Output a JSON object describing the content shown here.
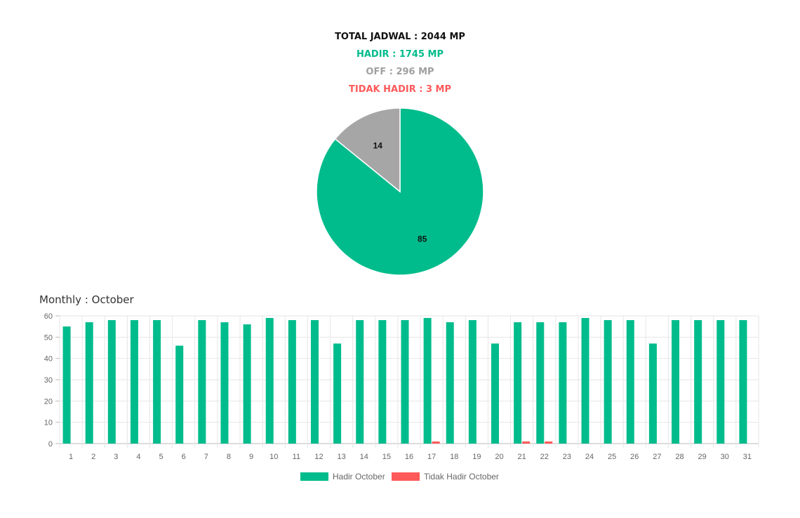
{
  "summary": {
    "total": {
      "text": "TOTAL JADWAL : 2044 MP",
      "color": "#111111"
    },
    "hadir": {
      "text": "HADIR : 1745 MP",
      "color": "#00bc8c"
    },
    "off": {
      "text": "OFF : 296 MP",
      "color": "#a0a0a0"
    },
    "tidak": {
      "text": "TIDAK HADIR : 3 MP",
      "color": "#ff5a5a"
    }
  },
  "monthly_title": "Monthly : October",
  "colors": {
    "hadir": "#00bc8c",
    "off": "#a6a6a6",
    "tidak": "#ff5a5a",
    "grid": "#e6e6e6",
    "tick": "#666666"
  },
  "chart_data": [
    {
      "type": "pie",
      "slices": [
        {
          "label": "HADIR",
          "value": 85,
          "color": "#00bc8c"
        },
        {
          "label": "OFF",
          "value": 14,
          "color": "#a6a6a6"
        }
      ]
    },
    {
      "type": "bar",
      "categories": [
        "1",
        "2",
        "3",
        "4",
        "5",
        "6",
        "7",
        "8",
        "9",
        "10",
        "11",
        "12",
        "13",
        "14",
        "15",
        "16",
        "17",
        "18",
        "19",
        "20",
        "21",
        "22",
        "23",
        "24",
        "25",
        "26",
        "27",
        "28",
        "29",
        "30",
        "31"
      ],
      "series": [
        {
          "name": "Hadir October",
          "color": "#00bc8c",
          "values": [
            55,
            57,
            58,
            58,
            58,
            46,
            58,
            57,
            56,
            59,
            58,
            58,
            47,
            58,
            58,
            58,
            59,
            57,
            58,
            47,
            57,
            57,
            57,
            59,
            58,
            58,
            47,
            58,
            58,
            58,
            58
          ]
        },
        {
          "name": "Tidak Hadir October",
          "color": "#ff5a5a",
          "values": [
            0,
            0,
            0,
            0,
            0,
            0,
            0,
            0,
            0,
            0,
            0,
            0,
            0,
            0,
            0,
            0,
            1,
            0,
            0,
            0,
            1,
            1,
            0,
            0,
            0,
            0,
            0,
            0,
            0,
            0,
            0
          ]
        }
      ],
      "yticks": [
        0,
        10,
        20,
        30,
        40,
        50,
        60
      ],
      "ylim": [
        0,
        60
      ],
      "grid": true,
      "legend": "bottom"
    }
  ]
}
